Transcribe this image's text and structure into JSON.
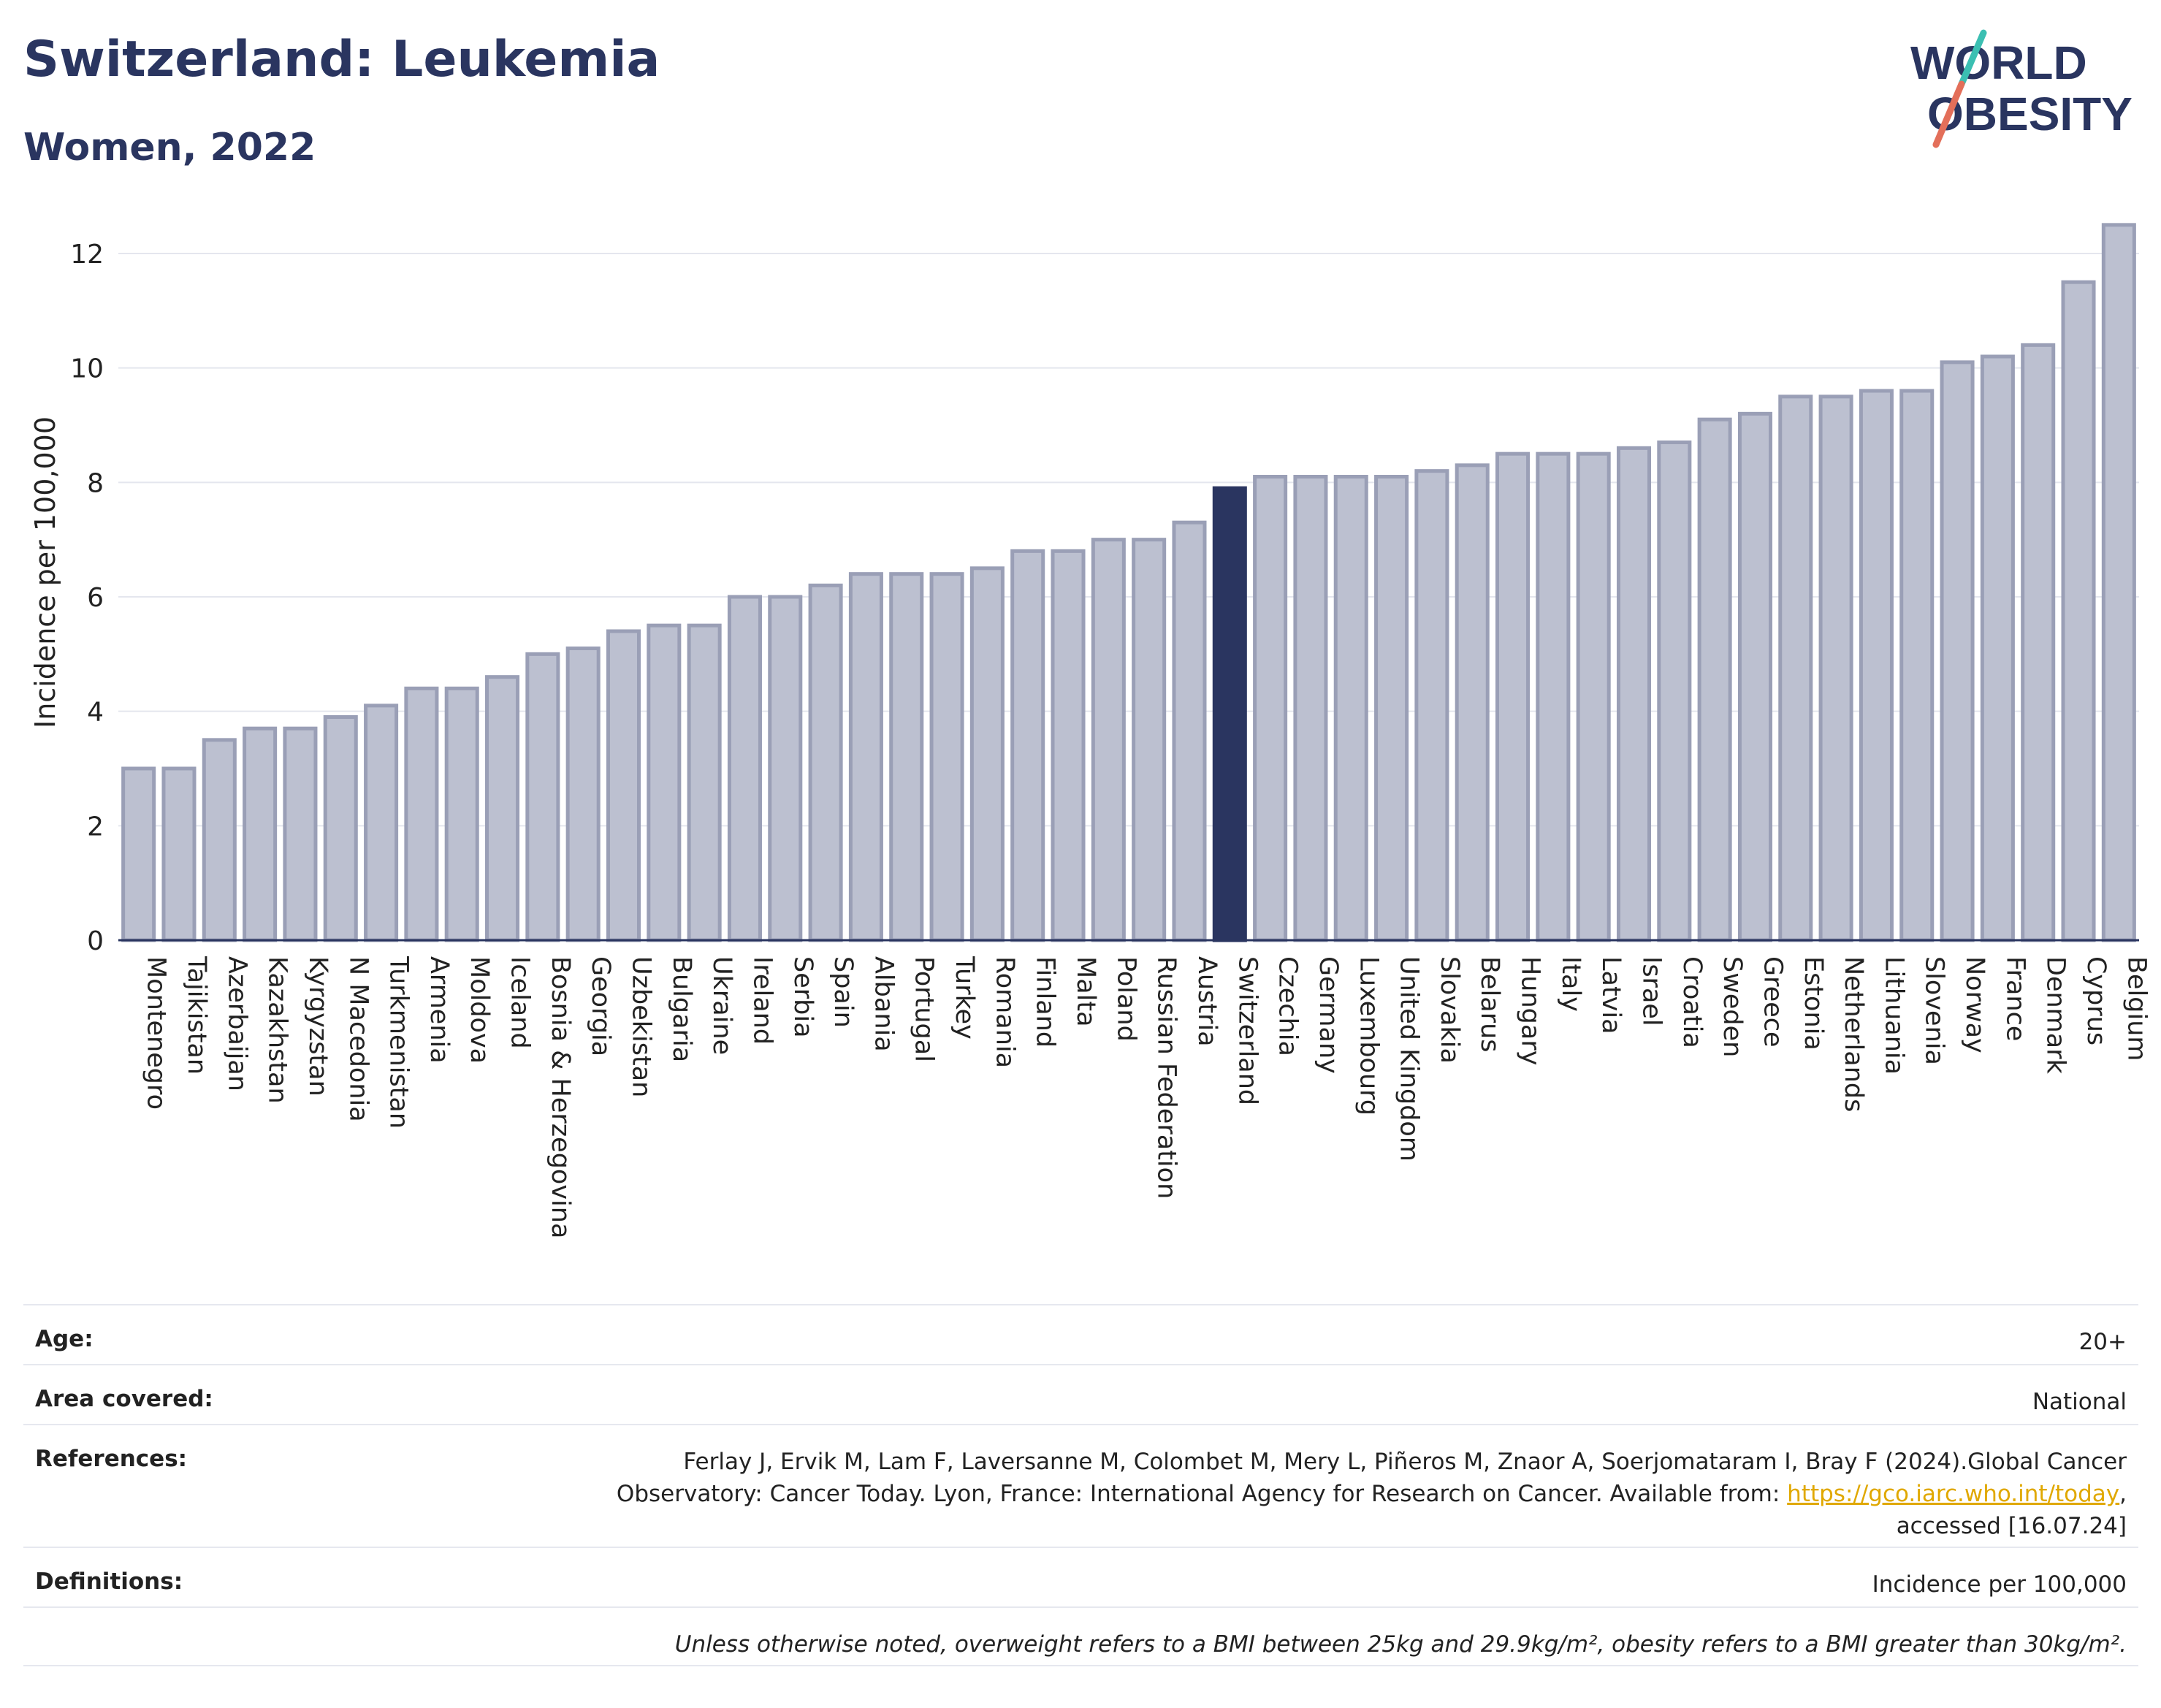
{
  "title": "Switzerland: Leukemia",
  "subtitle": "Women, 2022",
  "logo": {
    "line1": "WORLD",
    "line2": "OBESITY"
  },
  "colors": {
    "highlight": "#2a3560",
    "bar_fill": "#bcc0d0",
    "bar_stroke": "#9a9fb6",
    "text": "#2a3560"
  },
  "chart_data": {
    "type": "bar",
    "ylabel": "Incidence per 100,000",
    "xlabel": "",
    "ylim": [
      0,
      12.6
    ],
    "yticks": [
      0,
      2,
      4,
      6,
      8,
      10,
      12
    ],
    "highlight": "Switzerland",
    "grid": true,
    "categories": [
      "Montenegro",
      "Tajikistan",
      "Azerbaijan",
      "Kazakhstan",
      "Kyrgyzstan",
      "N Macedonia",
      "Turkmenistan",
      "Armenia",
      "Moldova",
      "Iceland",
      "Bosnia & Herzegovina",
      "Georgia",
      "Uzbekistan",
      "Bulgaria",
      "Ukraine",
      "Ireland",
      "Serbia",
      "Spain",
      "Albania",
      "Portugal",
      "Turkey",
      "Romania",
      "Finland",
      "Malta",
      "Poland",
      "Russian Federation",
      "Austria",
      "Switzerland",
      "Czechia",
      "Germany",
      "Luxembourg",
      "United Kingdom",
      "Slovakia",
      "Belarus",
      "Hungary",
      "Italy",
      "Latvia",
      "Israel",
      "Croatia",
      "Sweden",
      "Greece",
      "Estonia",
      "Netherlands",
      "Lithuania",
      "Slovenia",
      "Norway",
      "France",
      "Denmark",
      "Cyprus",
      "Belgium"
    ],
    "values": [
      3.0,
      3.0,
      3.5,
      3.7,
      3.7,
      3.9,
      4.1,
      4.4,
      4.4,
      4.6,
      5.0,
      5.1,
      5.4,
      5.5,
      5.5,
      6.0,
      6.0,
      6.2,
      6.4,
      6.4,
      6.4,
      6.5,
      6.8,
      6.8,
      7.0,
      7.0,
      7.3,
      7.9,
      8.1,
      8.1,
      8.1,
      8.1,
      8.2,
      8.3,
      8.5,
      8.5,
      8.5,
      8.6,
      8.7,
      9.1,
      9.2,
      9.5,
      9.5,
      9.6,
      9.6,
      10.1,
      10.2,
      10.4,
      11.5,
      12.5
    ]
  },
  "meta": {
    "age_label": "Age:",
    "age_value": "20+",
    "area_label": "Area covered:",
    "area_value": "National",
    "ref_label": "References:",
    "ref_text1": "Ferlay J, Ervik M, Lam F, Laversanne M, Colombet M, Mery L, Piñeros M, Znaor A, Soerjomataram I, Bray F (2024).Global Cancer Observatory: Cancer Today. Lyon, France: International Agency for Research on Cancer. Available from: ",
    "ref_link": "https://gco.iarc.who.int/today",
    "ref_text2": ", accessed [16.07.24]",
    "def_label": "Definitions:",
    "def_value": "Incidence per 100,000",
    "note": "Unless otherwise noted, overweight refers to a BMI between 25kg and 29.9kg/m², obesity refers to a BMI greater than 30kg/m²."
  }
}
